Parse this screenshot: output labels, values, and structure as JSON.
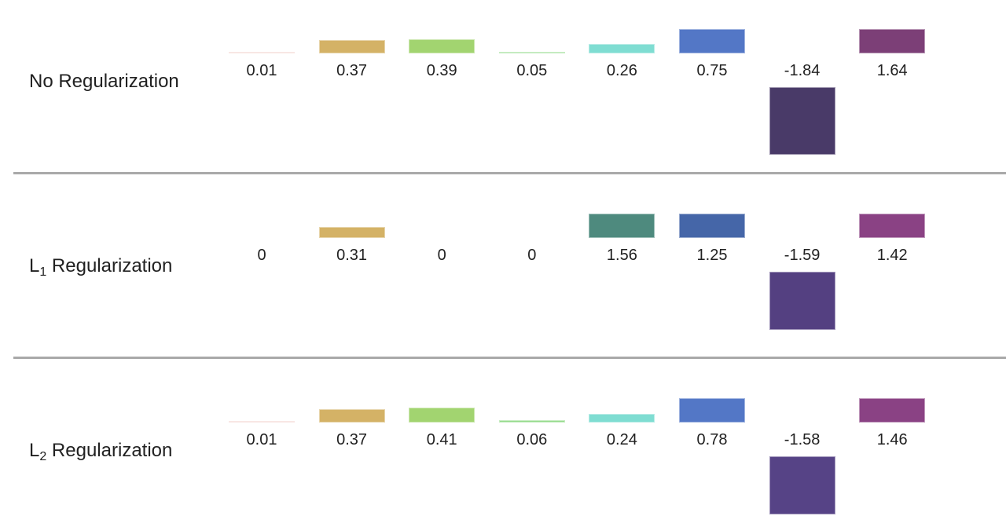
{
  "page": {
    "background": "#ffffff",
    "text_color": "#212121",
    "divider_color": "#a9a9a9"
  },
  "chart_data": {
    "type": "bar",
    "title": "",
    "description": "Three stacked mini bar charts comparing 8 model weight values under different regularization schemes; value labels sit below each baseline, negative bars drop below their labels, tall positive bars are clipped at the panel top",
    "legend": "none",
    "axes_shown": false,
    "grid": false,
    "n_bars_per_row": 8,
    "ylim_visible_per_panel": [
      -2.05,
      0.66
    ],
    "series": [
      {
        "name": "No Regularization",
        "values": [
          0.01,
          0.37,
          0.39,
          0.05,
          0.26,
          0.75,
          -1.84,
          1.64
        ]
      },
      {
        "name": "L1 Regularization",
        "values": [
          0,
          0.31,
          0,
          0,
          1.56,
          1.25,
          -1.59,
          1.42
        ]
      },
      {
        "name": "L2 Regularization",
        "values": [
          0.01,
          0.37,
          0.41,
          0.06,
          0.24,
          0.78,
          -1.58,
          1.46
        ]
      }
    ],
    "rows": [
      {
        "label_text": "No Regularization",
        "label_pre": "No Regularization",
        "label_sub": "",
        "label_post": "",
        "values": [
          0.01,
          0.37,
          0.39,
          0.05,
          0.26,
          0.75,
          -1.84,
          1.64
        ],
        "value_labels": [
          "0.01",
          "0.37",
          "0.39",
          "0.05",
          "0.26",
          "0.75",
          "-1.84",
          "1.64"
        ],
        "colors": [
          "#f2d4ce",
          "#d4b266",
          "#a2d470",
          "#96db8c",
          "#7fddd2",
          "#5377c6",
          "#493a68",
          "#7c3f77"
        ]
      },
      {
        "label_text": "L1 Regularization",
        "label_pre": "L",
        "label_sub": "1",
        "label_post": " Regularization",
        "values": [
          0,
          0.31,
          0,
          0,
          1.56,
          1.25,
          -1.59,
          1.42
        ],
        "value_labels": [
          "0",
          "0.31",
          "0",
          "0",
          "1.56",
          "1.25",
          "-1.59",
          "1.42"
        ],
        "colors": [
          "",
          "#d4b266",
          "",
          "",
          "#4e8a7e",
          "#4566a8",
          "#544081",
          "#8a4284"
        ]
      },
      {
        "label_text": "L2 Regularization",
        "label_pre": "L",
        "label_sub": "2",
        "label_post": " Regularization",
        "values": [
          0.01,
          0.37,
          0.41,
          0.06,
          0.24,
          0.78,
          -1.58,
          1.46
        ],
        "value_labels": [
          "0.01",
          "0.37",
          "0.41",
          "0.06",
          "0.24",
          "0.78",
          "-1.58",
          "1.46"
        ],
        "colors": [
          "#f2d4ce",
          "#d4b266",
          "#a2d470",
          "#96db8c",
          "#7fddd2",
          "#5377c6",
          "#564386",
          "#8a4284"
        ]
      }
    ]
  }
}
